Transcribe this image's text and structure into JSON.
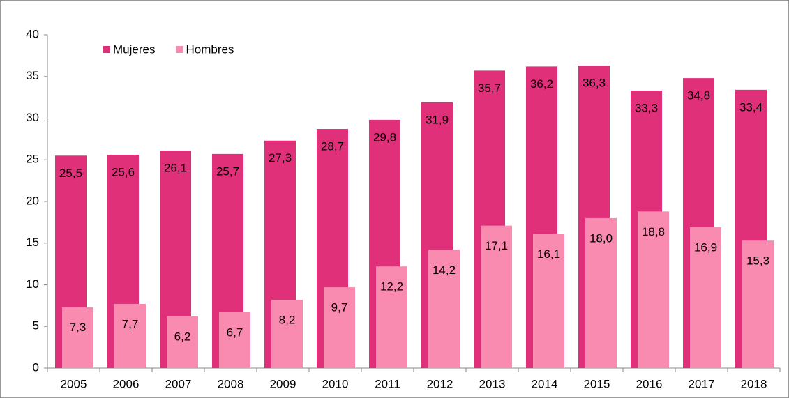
{
  "chart_data": {
    "type": "bar",
    "categories": [
      "2005",
      "2006",
      "2007",
      "2008",
      "2009",
      "2010",
      "2011",
      "2012",
      "2013",
      "2014",
      "2015",
      "2016",
      "2017",
      "2018"
    ],
    "series": [
      {
        "name": "Mujeres",
        "color": "#e0307a",
        "values": [
          25.5,
          25.6,
          26.1,
          25.7,
          27.3,
          28.7,
          29.8,
          31.9,
          35.7,
          36.2,
          36.3,
          33.3,
          34.8,
          33.4
        ],
        "value_labels": [
          "25,5",
          "25,6",
          "26,1",
          "25,7",
          "27,3",
          "28,7",
          "29,8",
          "31,9",
          "35,7",
          "36,2",
          "36,3",
          "33,3",
          "34,8",
          "33,4"
        ]
      },
      {
        "name": "Hombres",
        "color": "#f98bb0",
        "values": [
          7.3,
          7.7,
          6.2,
          6.7,
          8.2,
          9.7,
          12.2,
          14.2,
          17.1,
          16.1,
          18.0,
          18.8,
          16.9,
          15.3
        ],
        "value_labels": [
          "7,3",
          "7,7",
          "6,2",
          "6,7",
          "8,2",
          "9,7",
          "12,2",
          "14,2",
          "17,1",
          "16,1",
          "18,0",
          "18,8",
          "16,9",
          "15,3"
        ]
      }
    ],
    "ylim": [
      0,
      40
    ],
    "yticks": [
      0,
      5,
      10,
      15,
      20,
      25,
      30,
      35,
      40
    ],
    "grid": false,
    "legend": "top-left"
  }
}
